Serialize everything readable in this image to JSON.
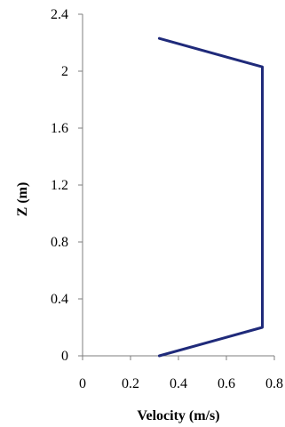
{
  "chart_data": {
    "type": "line",
    "title": "",
    "xlabel": "Velocity (m/s)",
    "ylabel": "Z (m)",
    "xlim": [
      0,
      0.8
    ],
    "ylim": [
      0,
      2.4
    ],
    "x_ticks": [
      0,
      0.2,
      0.4,
      0.6,
      0.8
    ],
    "x_tick_labels": [
      "0",
      "0.2",
      "0.4",
      "0.6",
      "0.8"
    ],
    "y_ticks": [
      0,
      0.4,
      0.8,
      1.2,
      1.6,
      2,
      2.4
    ],
    "y_tick_labels": [
      "0",
      "0.4",
      "0.8",
      "1.2",
      "1.6",
      "2",
      "2.4"
    ],
    "grid": false,
    "legend": "none",
    "series": [
      {
        "color": "#1f2a7a",
        "x": [
          0.32,
          0.75,
          0.75,
          0.32
        ],
        "y": [
          0,
          0.2,
          2.03,
          2.23
        ]
      }
    ]
  }
}
